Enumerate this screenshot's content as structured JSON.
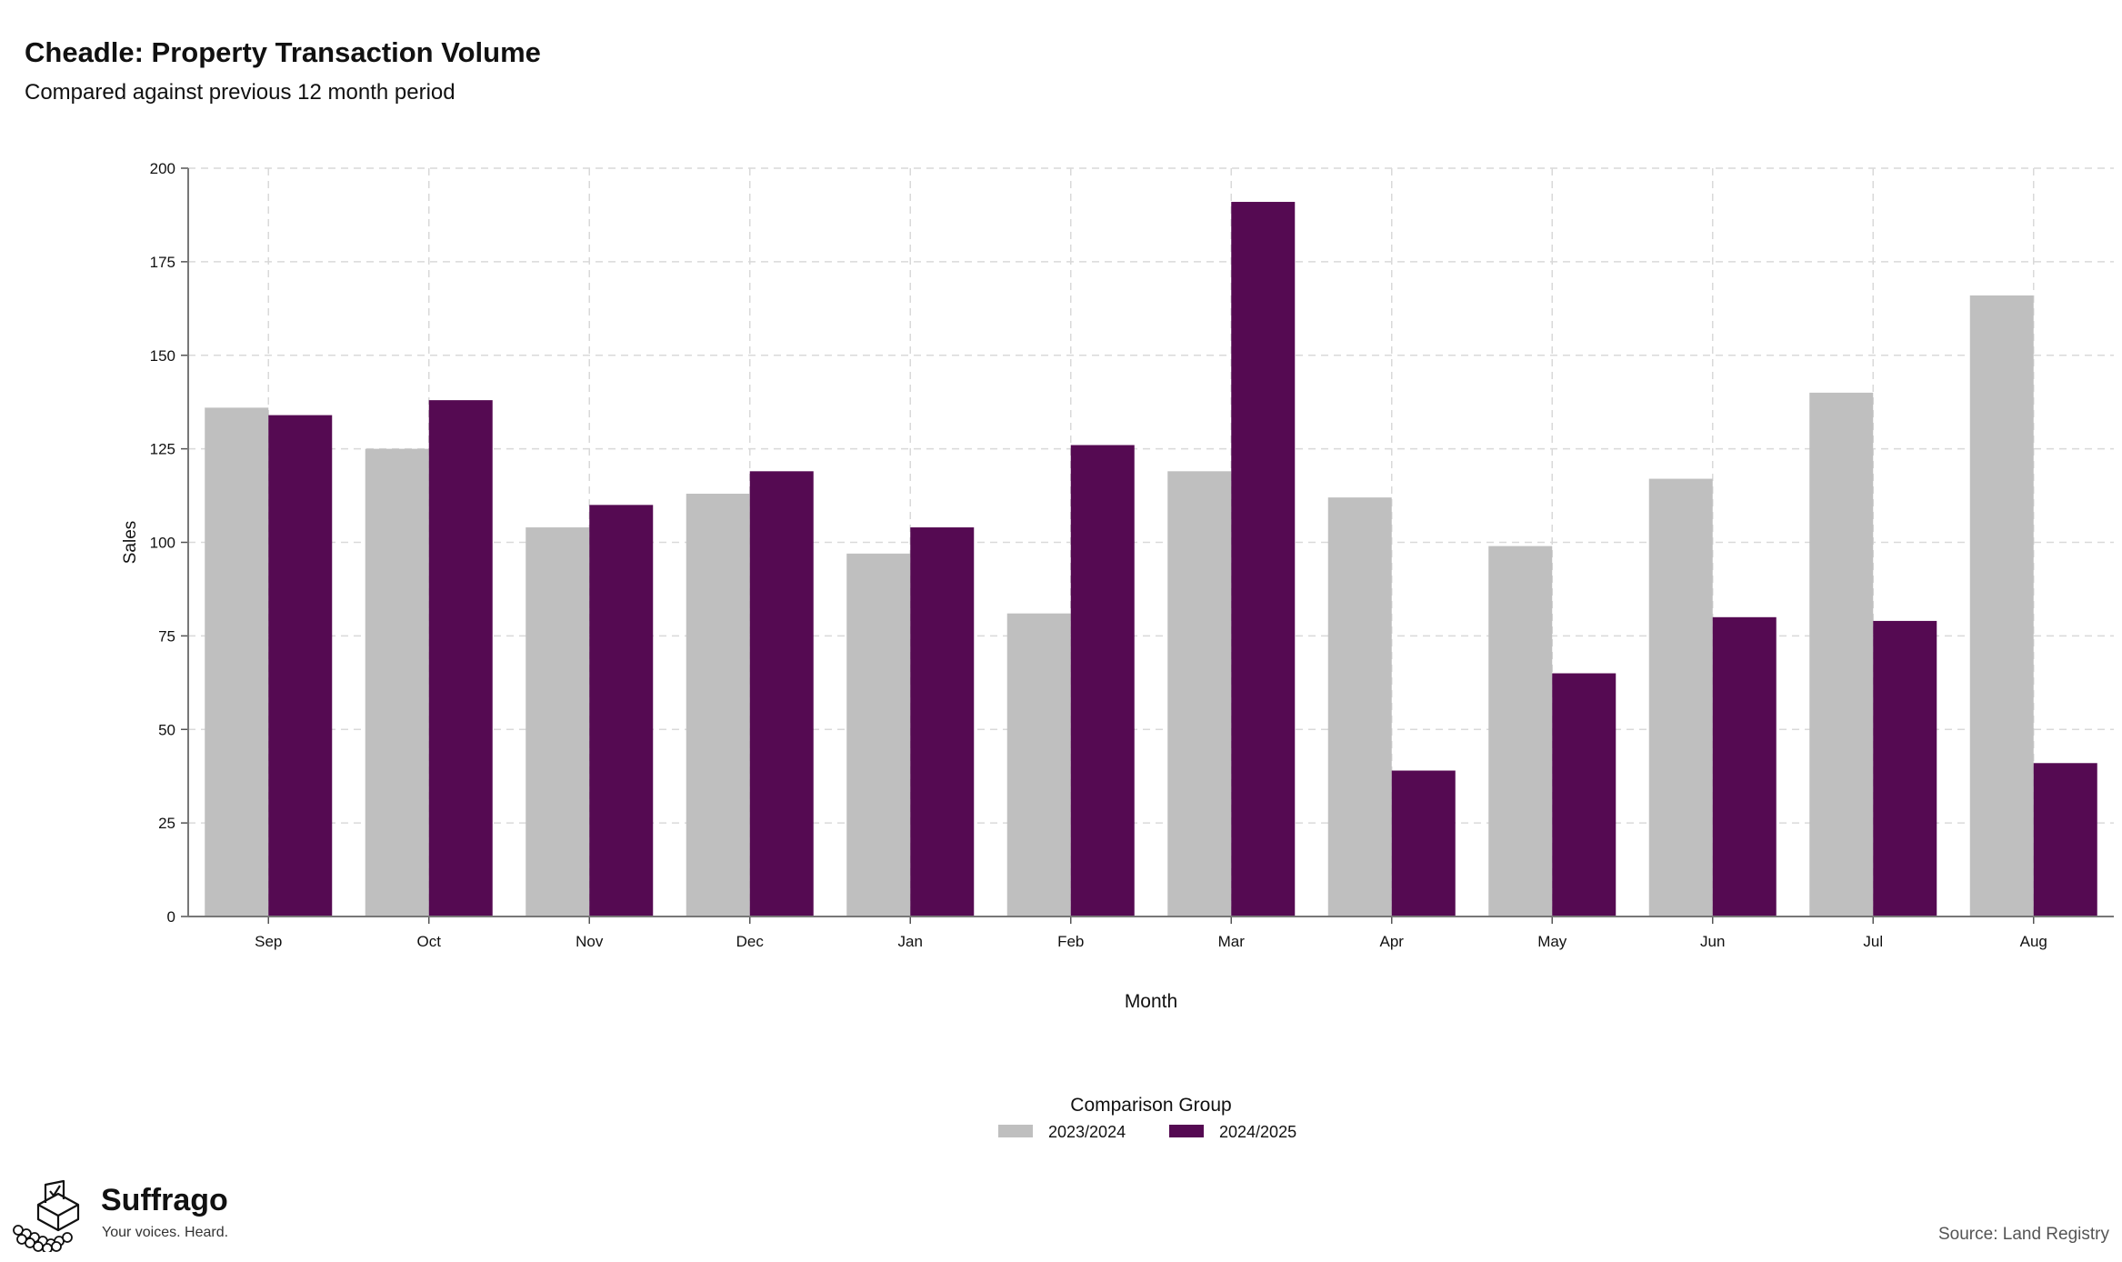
{
  "header": {
    "title": "Cheadle: Property Transaction Volume",
    "subtitle": "Compared against previous 12 month period"
  },
  "chart_data": {
    "type": "bar",
    "categories": [
      "Sep",
      "Oct",
      "Nov",
      "Dec",
      "Jan",
      "Feb",
      "Mar",
      "Apr",
      "May",
      "Jun",
      "Jul",
      "Aug"
    ],
    "series": [
      {
        "name": "2023/2024",
        "color": "#bfbfbf",
        "values": [
          136,
          125,
          104,
          113,
          97,
          81,
          119,
          112,
          99,
          117,
          140,
          166
        ]
      },
      {
        "name": "2024/2025",
        "color": "#550a52",
        "values": [
          134,
          138,
          110,
          119,
          104,
          126,
          191,
          39,
          65,
          80,
          79,
          41
        ]
      }
    ],
    "xlabel": "Month",
    "ylabel": "Sales",
    "ylim": [
      0,
      200
    ],
    "yticks": [
      0,
      25,
      50,
      75,
      100,
      125,
      150,
      175,
      200
    ],
    "grid": true,
    "legend_title": "Comparison Group",
    "legend_position": "bottom"
  },
  "branding": {
    "name": "Suffrago",
    "tagline": "Your voices. Heard.",
    "logo_icon": "ballot-box-icon"
  },
  "footer": {
    "source": "Source: Land Registry"
  }
}
